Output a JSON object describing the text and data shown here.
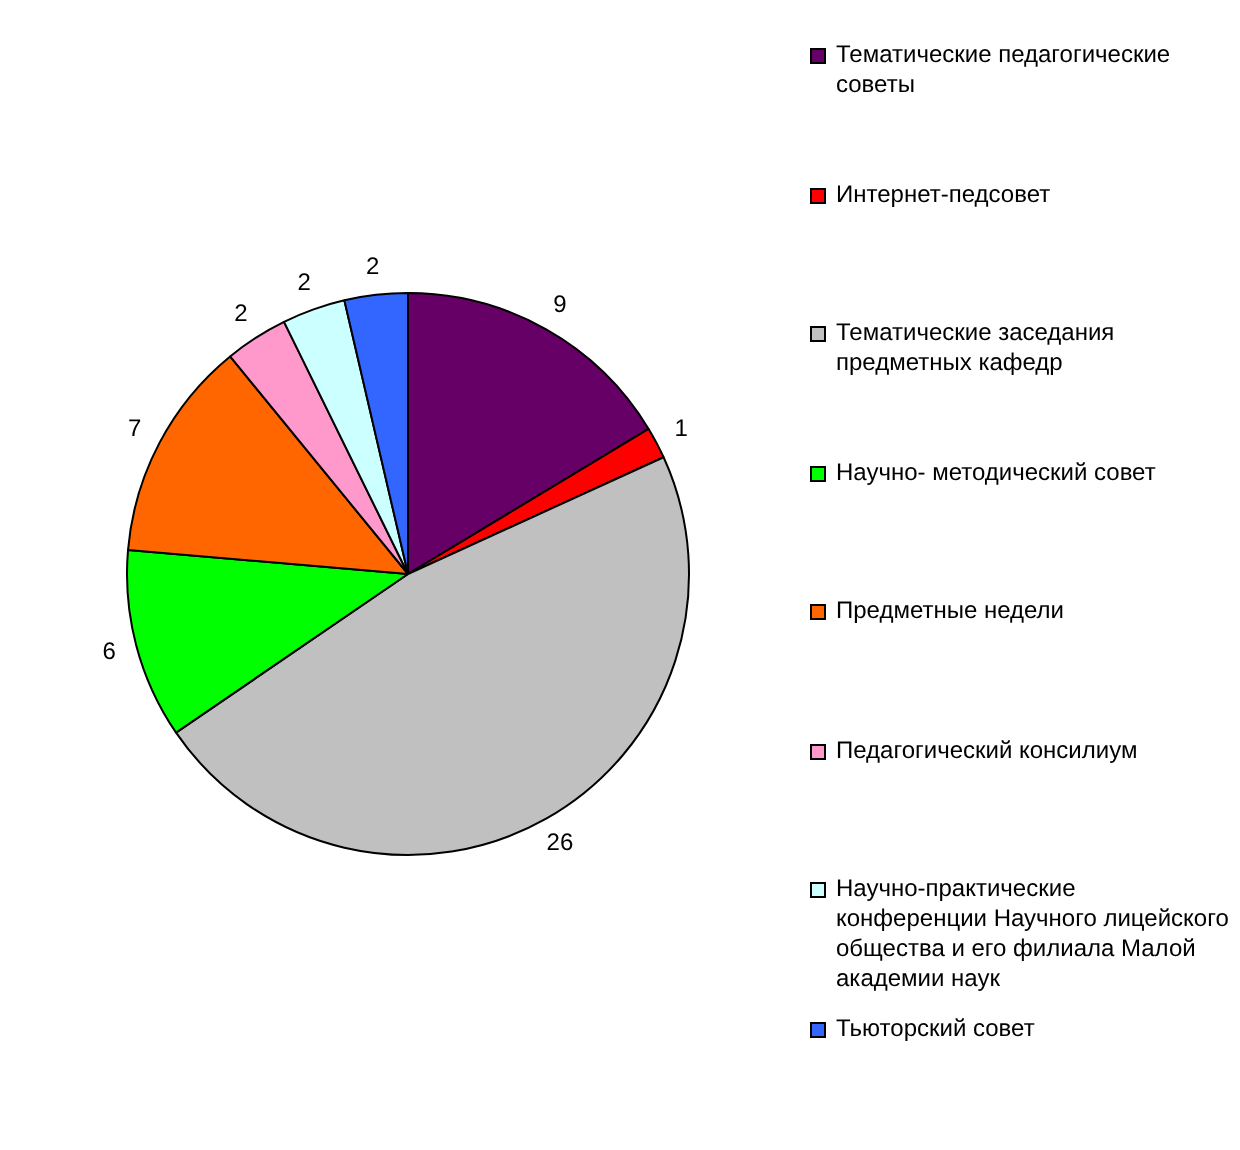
{
  "chart_data": {
    "type": "pie",
    "categories": [
      "Тематические педагогические советы",
      "Интернет-педсовет",
      "Тематические заседания предметных кафедр",
      "Научно- методический совет",
      "Предметные недели",
      "Педагогический консилиум",
      "Научно-практические конференции Научного лицейского общества и его филиала Малой академии наук",
      "Тьюторский совет"
    ],
    "values": [
      9,
      1,
      26,
      6,
      7,
      2,
      2,
      2
    ],
    "colors": [
      "#660066",
      "#ff0000",
      "#c0c0c0",
      "#00ff00",
      "#ff6600",
      "#ff99cc",
      "#ccffff",
      "#3366ff"
    ],
    "data_labels": true,
    "legend": "right"
  }
}
